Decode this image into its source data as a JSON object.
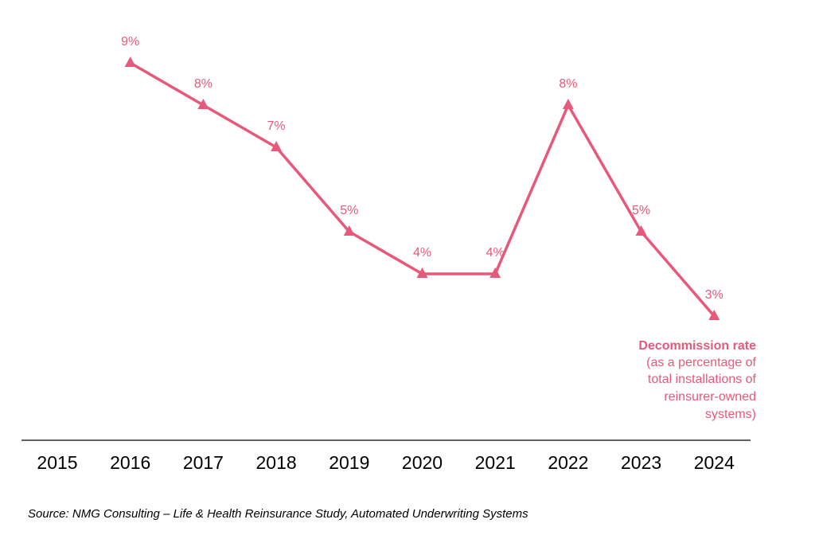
{
  "chart_data": {
    "type": "line",
    "categories": [
      "2015",
      "2016",
      "2017",
      "2018",
      "2019",
      "2020",
      "2021",
      "2022",
      "2023",
      "2024"
    ],
    "series": [
      {
        "name": "Decommission rate",
        "color": "#e8587a",
        "values": [
          null,
          9,
          8,
          7,
          5,
          4,
          4,
          8,
          5,
          3
        ],
        "value_labels": [
          null,
          "9%",
          "8%",
          "7%",
          "5%",
          "4%",
          "4%",
          "8%",
          "5%",
          "3%"
        ]
      }
    ],
    "annotation": {
      "title": "Decommission rate",
      "lines": [
        "(as a percentage of",
        "total installations of",
        "reinsurer-owned",
        "systems)"
      ]
    },
    "source": "Source: NMG Consulting – Life & Health Reinsurance Study, Automated Underwriting Systems"
  }
}
